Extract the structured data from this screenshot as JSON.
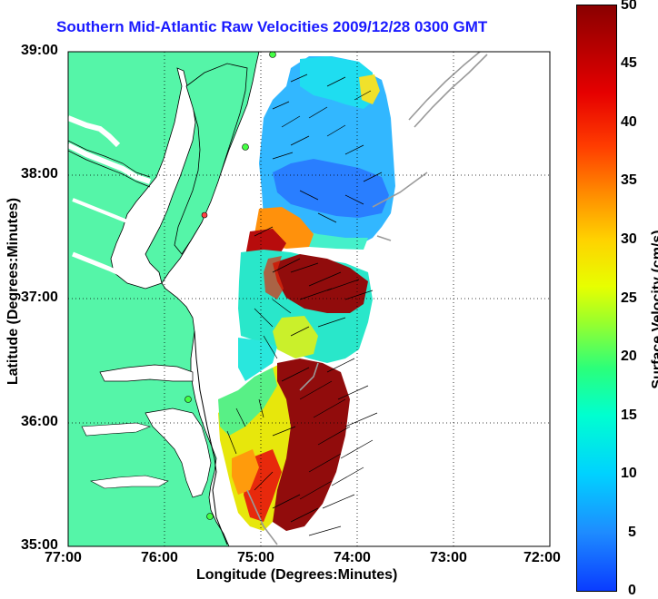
{
  "title": "Southern Mid-Atlantic Raw Velocities 2009/12/28 0300 GMT",
  "xlabel": "Longitude (Degrees:Minutes)",
  "ylabel": "Latitude (Degrees:Minutes)",
  "x_ticks": [
    "77:00",
    "76:00",
    "75:00",
    "74:00",
    "73:00",
    "72:00"
  ],
  "y_ticks": [
    "39:00",
    "38:00",
    "37:00",
    "36:00",
    "35:00"
  ],
  "colorbar": {
    "label": "Surface Velocity (cm/s)",
    "ticks": [
      "50",
      "45",
      "40",
      "35",
      "30",
      "25",
      "20",
      "15",
      "10",
      "5",
      "0"
    ],
    "range": [
      0,
      50
    ]
  },
  "colors": {
    "land": "#55f5a8",
    "title": "#1a1aff",
    "coast": "#000000",
    "isobath": "#9a9a9a"
  },
  "layers": [
    {
      "name": "land"
    },
    {
      "name": "surface-velocity-field"
    },
    {
      "name": "velocity-vectors"
    },
    {
      "name": "isobath"
    },
    {
      "name": "hf-radar-sites"
    }
  ]
}
